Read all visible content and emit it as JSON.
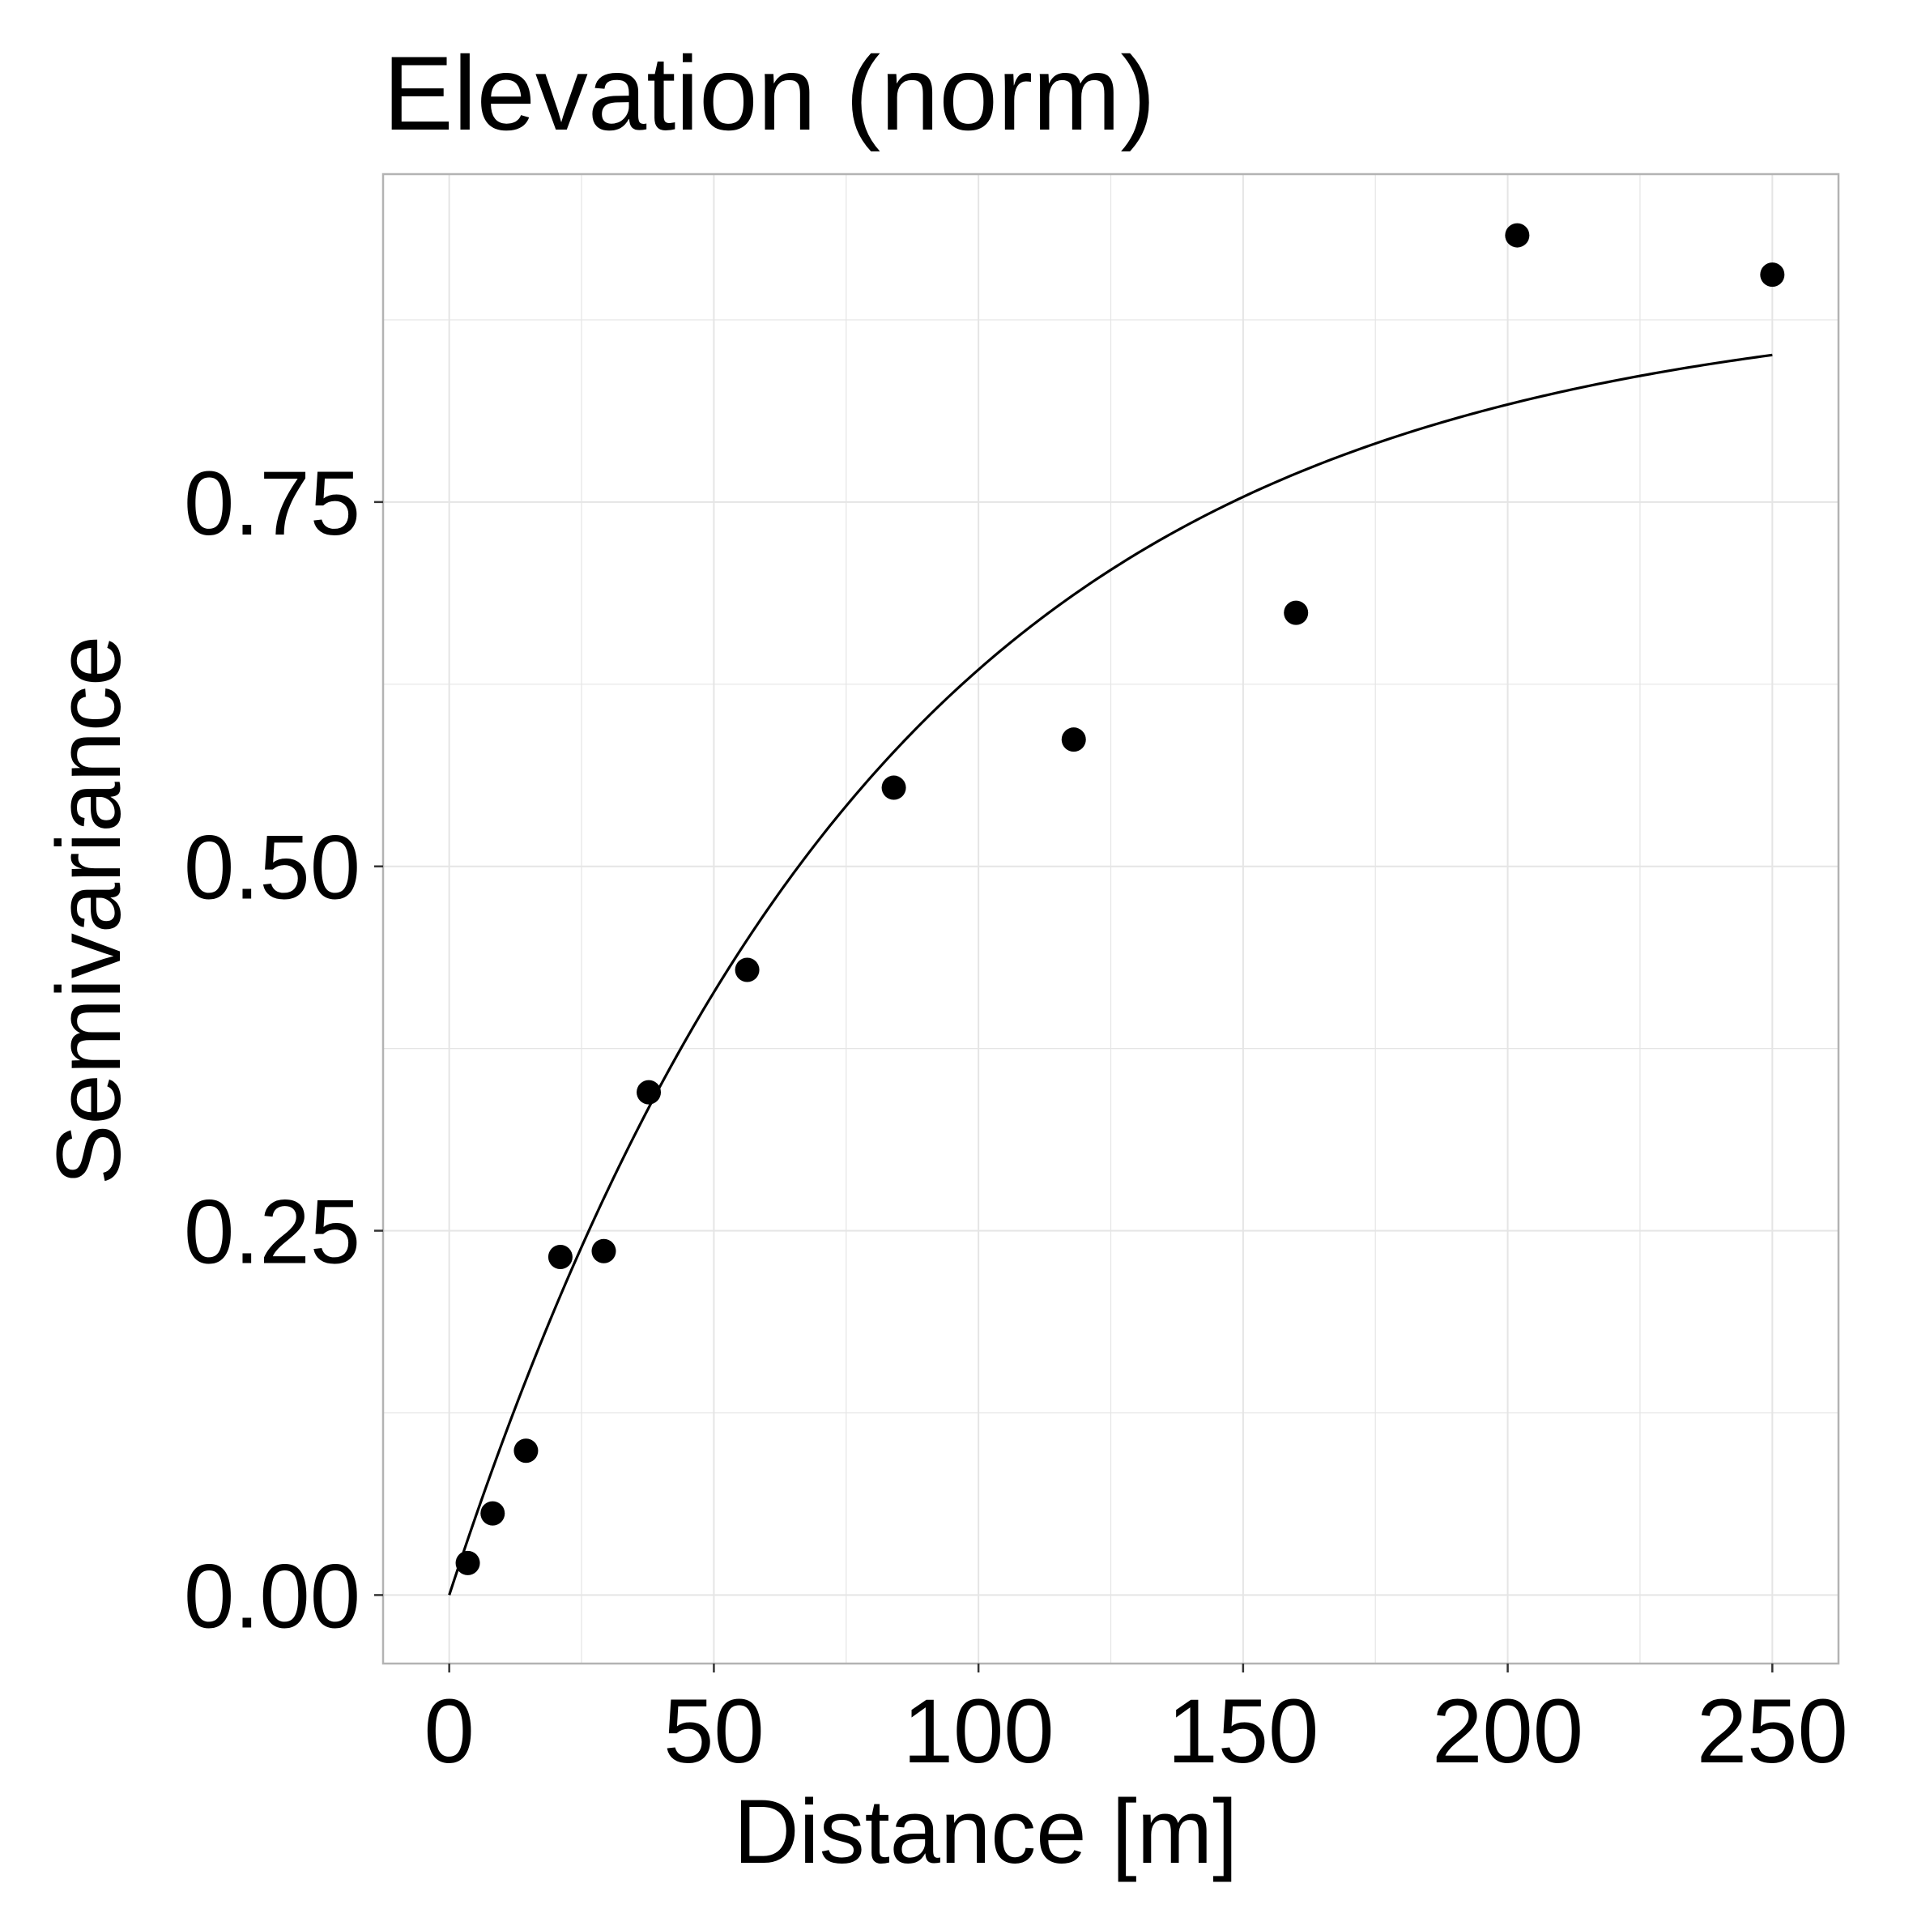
{
  "chart_data": {
    "type": "scatter",
    "title": "Elevation (norm)",
    "xlabel": "Distance [m]",
    "ylabel": "Semivariance",
    "xlim": [
      -12.5,
      262.5
    ],
    "ylim": [
      -0.047,
      0.975
    ],
    "x_ticks": [
      0,
      50,
      100,
      150,
      200,
      250
    ],
    "x_tick_labels": [
      "0",
      "50",
      "100",
      "150",
      "200",
      "250"
    ],
    "y_ticks": [
      0.0,
      0.25,
      0.5,
      0.75
    ],
    "y_tick_labels": [
      "0.00",
      "0.25",
      "0.50",
      "0.75"
    ],
    "grid": true,
    "colors": {
      "points": "#000000",
      "line": "#000000",
      "grid": "#e5e5e5",
      "panel_border": "#b3b3b3",
      "background": "#ffffff"
    },
    "series": [
      {
        "kind": "points",
        "x": [
          3.5,
          8.2,
          14.5,
          21.0,
          29.2,
          37.7,
          56.3,
          84.0,
          118.0,
          160.0,
          201.8,
          250.0
        ],
        "y": [
          0.022,
          0.056,
          0.099,
          0.232,
          0.236,
          0.345,
          0.429,
          0.554,
          0.587,
          0.674,
          0.933,
          0.906
        ]
      },
      {
        "kind": "fitted-line",
        "model": "exponential",
        "sill": 0.89,
        "range": 80,
        "x_max": 250
      }
    ]
  }
}
